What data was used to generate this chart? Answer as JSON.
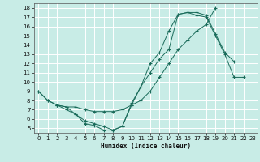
{
  "xlabel": "Humidex (Indice chaleur)",
  "bg_color": "#c8ece6",
  "line_color": "#1a6b5a",
  "grid_color": "#ffffff",
  "xlim": [
    -0.5,
    23.5
  ],
  "ylim": [
    4.5,
    18.5
  ],
  "xticks": [
    0,
    1,
    2,
    3,
    4,
    5,
    6,
    7,
    8,
    9,
    10,
    11,
    12,
    13,
    14,
    15,
    16,
    17,
    18,
    19,
    20,
    21,
    22,
    23
  ],
  "yticks": [
    5,
    6,
    7,
    8,
    9,
    10,
    11,
    12,
    13,
    14,
    15,
    16,
    17,
    18
  ],
  "line1_x": [
    0,
    1,
    2,
    3,
    4,
    5,
    6,
    7,
    8,
    9,
    10,
    11,
    12,
    13,
    14,
    15,
    16,
    17,
    18,
    19,
    20,
    21
  ],
  "line1_y": [
    9.0,
    8.0,
    7.5,
    7.3,
    6.5,
    5.5,
    5.3,
    4.8,
    4.8,
    5.2,
    7.5,
    9.5,
    12.0,
    13.2,
    15.5,
    17.3,
    17.5,
    17.5,
    17.2,
    15.2,
    13.2,
    12.2
  ],
  "line2_x": [
    0,
    1,
    2,
    3,
    4,
    5,
    6,
    7,
    8,
    9,
    10,
    11,
    12,
    13,
    14,
    15,
    16,
    17,
    18,
    19
  ],
  "line2_y": [
    9.0,
    8.0,
    7.5,
    7.3,
    7.3,
    7.0,
    6.8,
    6.8,
    6.8,
    7.0,
    7.5,
    8.0,
    9.0,
    10.5,
    12.0,
    13.5,
    14.5,
    15.5,
    16.2,
    18.0
  ],
  "line3_x": [
    2,
    3,
    4,
    5,
    6,
    7,
    8,
    9,
    10,
    11,
    12,
    13,
    14,
    15,
    16,
    17,
    18,
    19,
    20,
    21,
    22
  ],
  "line3_y": [
    7.5,
    7.0,
    6.5,
    5.8,
    5.5,
    5.2,
    4.8,
    5.2,
    7.7,
    9.5,
    11.0,
    12.5,
    13.5,
    17.3,
    17.5,
    17.2,
    17.0,
    15.0,
    13.0,
    10.5,
    10.5
  ]
}
